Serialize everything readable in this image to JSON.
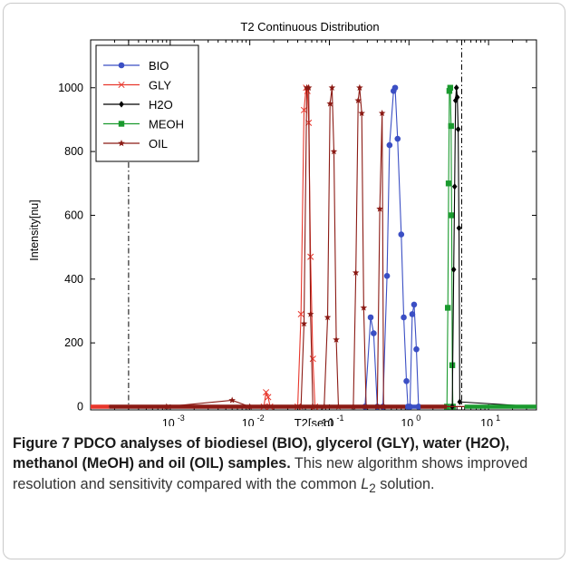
{
  "colors": {
    "BIO": "#3b4fc4",
    "GLY": "#e8362b",
    "H2O": "#000000",
    "MEOH": "#1a9a2e",
    "OIL": "#8b1a14"
  },
  "caption": {
    "label": "Figure 7",
    "bold_text": "PDCO analyses of biodiesel (BIO), glycerol (GLY), water (H2O), methanol (MeOH) and oil (OIL) samples.",
    "text": "This new algorithm shows improved resolution and sensitivity compared with the common",
    "math_base": "L",
    "math_sub": "2",
    "text_end": "solution."
  },
  "chart_data": {
    "type": "line",
    "title": "T2 Continuous Distribution",
    "xlabel": "T2[sec]",
    "ylabel": "Intensity[nu]",
    "xscale": "log",
    "xlim": [
      0.0001,
      40
    ],
    "ylim": [
      -10,
      1150
    ],
    "yticks": [
      0,
      200,
      400,
      600,
      800,
      1000
    ],
    "xticks": [
      {
        "value": 0.001,
        "base": "10",
        "exp": "-3"
      },
      {
        "value": 0.01,
        "base": "10",
        "exp": "-2"
      },
      {
        "value": 0.1,
        "base": "10",
        "exp": "-1"
      },
      {
        "value": 1,
        "base": "10",
        "exp": "0"
      },
      {
        "value": 10,
        "base": "10",
        "exp": "1"
      }
    ],
    "vlines": [
      0.0003,
      4.6
    ],
    "legend_position": "top-left",
    "grid": false,
    "series": [
      {
        "name": "BIO",
        "marker": "circle",
        "points": [
          [
            0.0001,
            0
          ],
          [
            0.28,
            0
          ],
          [
            0.33,
            280
          ],
          [
            0.36,
            230
          ],
          [
            0.4,
            0
          ],
          [
            0.47,
            0
          ],
          [
            0.53,
            410
          ],
          [
            0.57,
            820
          ],
          [
            0.64,
            990
          ],
          [
            0.67,
            1000
          ],
          [
            0.72,
            840
          ],
          [
            0.8,
            540
          ],
          [
            0.86,
            280
          ],
          [
            0.93,
            80
          ],
          [
            0.97,
            0
          ],
          [
            1.03,
            0
          ],
          [
            1.1,
            290
          ],
          [
            1.16,
            320
          ],
          [
            1.24,
            180
          ],
          [
            1.32,
            0
          ],
          [
            40,
            0
          ]
        ]
      },
      {
        "name": "GLY",
        "marker": "x",
        "points": [
          [
            0.0001,
            0
          ],
          [
            0.015,
            0
          ],
          [
            0.016,
            45
          ],
          [
            0.017,
            30
          ],
          [
            0.018,
            0
          ],
          [
            0.04,
            0
          ],
          [
            0.044,
            290
          ],
          [
            0.048,
            930
          ],
          [
            0.051,
            1000
          ],
          [
            0.053,
            990
          ],
          [
            0.055,
            890
          ],
          [
            0.058,
            470
          ],
          [
            0.062,
            150
          ],
          [
            0.066,
            0
          ],
          [
            40,
            0
          ]
        ]
      },
      {
        "name": "H2O",
        "marker": "diamond",
        "points": [
          [
            0.0001,
            0
          ],
          [
            3.5,
            0
          ],
          [
            3.65,
            430
          ],
          [
            3.75,
            690
          ],
          [
            3.85,
            960
          ],
          [
            3.95,
            1000
          ],
          [
            4.05,
            970
          ],
          [
            4.15,
            870
          ],
          [
            4.25,
            560
          ],
          [
            4.35,
            15
          ],
          [
            40,
            0
          ]
        ]
      },
      {
        "name": "MEOH",
        "marker": "square",
        "points": [
          [
            0.0001,
            0
          ],
          [
            3.0,
            0
          ],
          [
            3.08,
            310
          ],
          [
            3.15,
            700
          ],
          [
            3.22,
            990
          ],
          [
            3.3,
            1000
          ],
          [
            3.38,
            880
          ],
          [
            3.44,
            600
          ],
          [
            3.5,
            130
          ],
          [
            3.56,
            0
          ],
          [
            40,
            0
          ]
        ]
      },
      {
        "name": "OIL",
        "marker": "star",
        "points": [
          [
            0.0001,
            0
          ],
          [
            0.0009,
            0
          ],
          [
            0.006,
            20
          ],
          [
            0.01,
            0
          ],
          [
            0.044,
            0
          ],
          [
            0.048,
            260
          ],
          [
            0.052,
            1000
          ],
          [
            0.055,
            1000
          ],
          [
            0.058,
            290
          ],
          [
            0.062,
            0
          ],
          [
            0.086,
            0
          ],
          [
            0.095,
            280
          ],
          [
            0.102,
            950
          ],
          [
            0.108,
            1000
          ],
          [
            0.114,
            800
          ],
          [
            0.122,
            210
          ],
          [
            0.13,
            0
          ],
          [
            0.2,
            0
          ],
          [
            0.215,
            420
          ],
          [
            0.23,
            960
          ],
          [
            0.24,
            1000
          ],
          [
            0.255,
            920
          ],
          [
            0.27,
            310
          ],
          [
            0.29,
            0
          ],
          [
            0.4,
            0
          ],
          [
            0.43,
            620
          ],
          [
            0.46,
            920
          ],
          [
            0.48,
            0
          ],
          [
            40,
            0
          ]
        ]
      }
    ]
  }
}
